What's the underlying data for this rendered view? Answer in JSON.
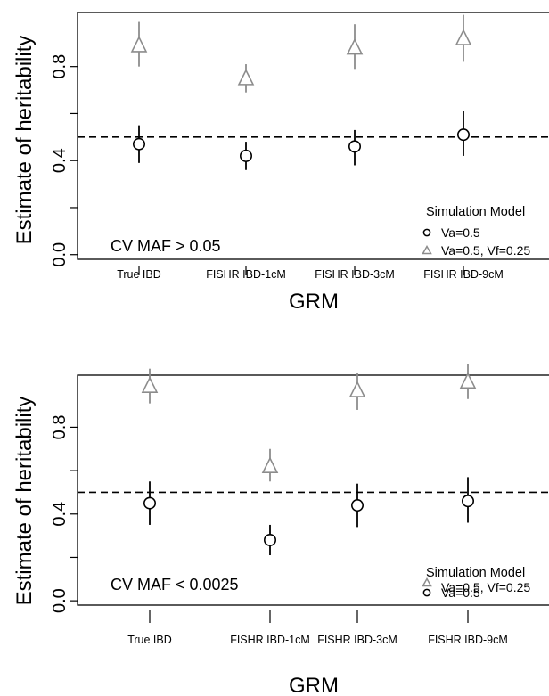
{
  "chart_data": [
    {
      "type": "scatter",
      "title": "",
      "xlabel": "GRM",
      "ylabel": "Estimate of heritability",
      "categories": [
        "True IBD",
        "FISHR IBD-1cM",
        "FISHR IBD-3cM",
        "FISHR IBD-9cM"
      ],
      "ylim": [
        -0.02,
        1.03
      ],
      "yticks": [
        "0.0",
        "0.4",
        "0.8"
      ],
      "yticks_values": [
        0.0,
        0.4,
        0.8
      ],
      "reference_line": 0.5,
      "annotation": "CV MAF > 0.05",
      "legend": {
        "title": "Simulation Model",
        "position": "bottom-right"
      },
      "series": [
        {
          "name": "Va=0.5",
          "marker": "circle",
          "color": "#000000",
          "values": [
            0.47,
            0.42,
            0.46,
            0.51
          ],
          "lower": [
            0.39,
            0.36,
            0.38,
            0.42
          ],
          "upper": [
            0.55,
            0.48,
            0.53,
            0.61
          ]
        },
        {
          "name": "Va=0.5, Vf=0.25",
          "marker": "triangle",
          "color": "#8c8c8c",
          "values": [
            0.89,
            0.75,
            0.88,
            0.92
          ],
          "lower": [
            0.8,
            0.69,
            0.79,
            0.82
          ],
          "upper": [
            0.99,
            0.81,
            0.98,
            1.02
          ]
        }
      ]
    },
    {
      "type": "scatter",
      "title": "",
      "xlabel": "GRM",
      "ylabel": "Estimate of heritability",
      "categories": [
        "True IBD",
        "FISHR IBD-1cM",
        "FISHR IBD-3cM",
        "FISHR IBD-9cM"
      ],
      "ylim": [
        -0.02,
        1.04
      ],
      "yticks": [
        "0.0",
        "0.4",
        "0.8"
      ],
      "yticks_values": [
        0.0,
        0.4,
        0.8
      ],
      "reference_line": 0.5,
      "annotation": "CV MAF < 0.0025",
      "legend": {
        "title": "Simulation Model",
        "position": "bottom-right"
      },
      "series": [
        {
          "name": "Va=0.5",
          "marker": "circle",
          "color": "#000000",
          "values": [
            0.45,
            0.28,
            0.44,
            0.46
          ],
          "lower": [
            0.35,
            0.21,
            0.34,
            0.36
          ],
          "upper": [
            0.55,
            0.35,
            0.54,
            0.57
          ]
        },
        {
          "name": "Va=0.5, Vf=0.25",
          "marker": "triangle",
          "color": "#8c8c8c",
          "values": [
            0.99,
            0.62,
            0.97,
            1.01
          ],
          "lower": [
            0.91,
            0.55,
            0.88,
            0.93
          ],
          "upper": [
            1.07,
            0.7,
            1.05,
            1.09
          ]
        }
      ]
    }
  ]
}
